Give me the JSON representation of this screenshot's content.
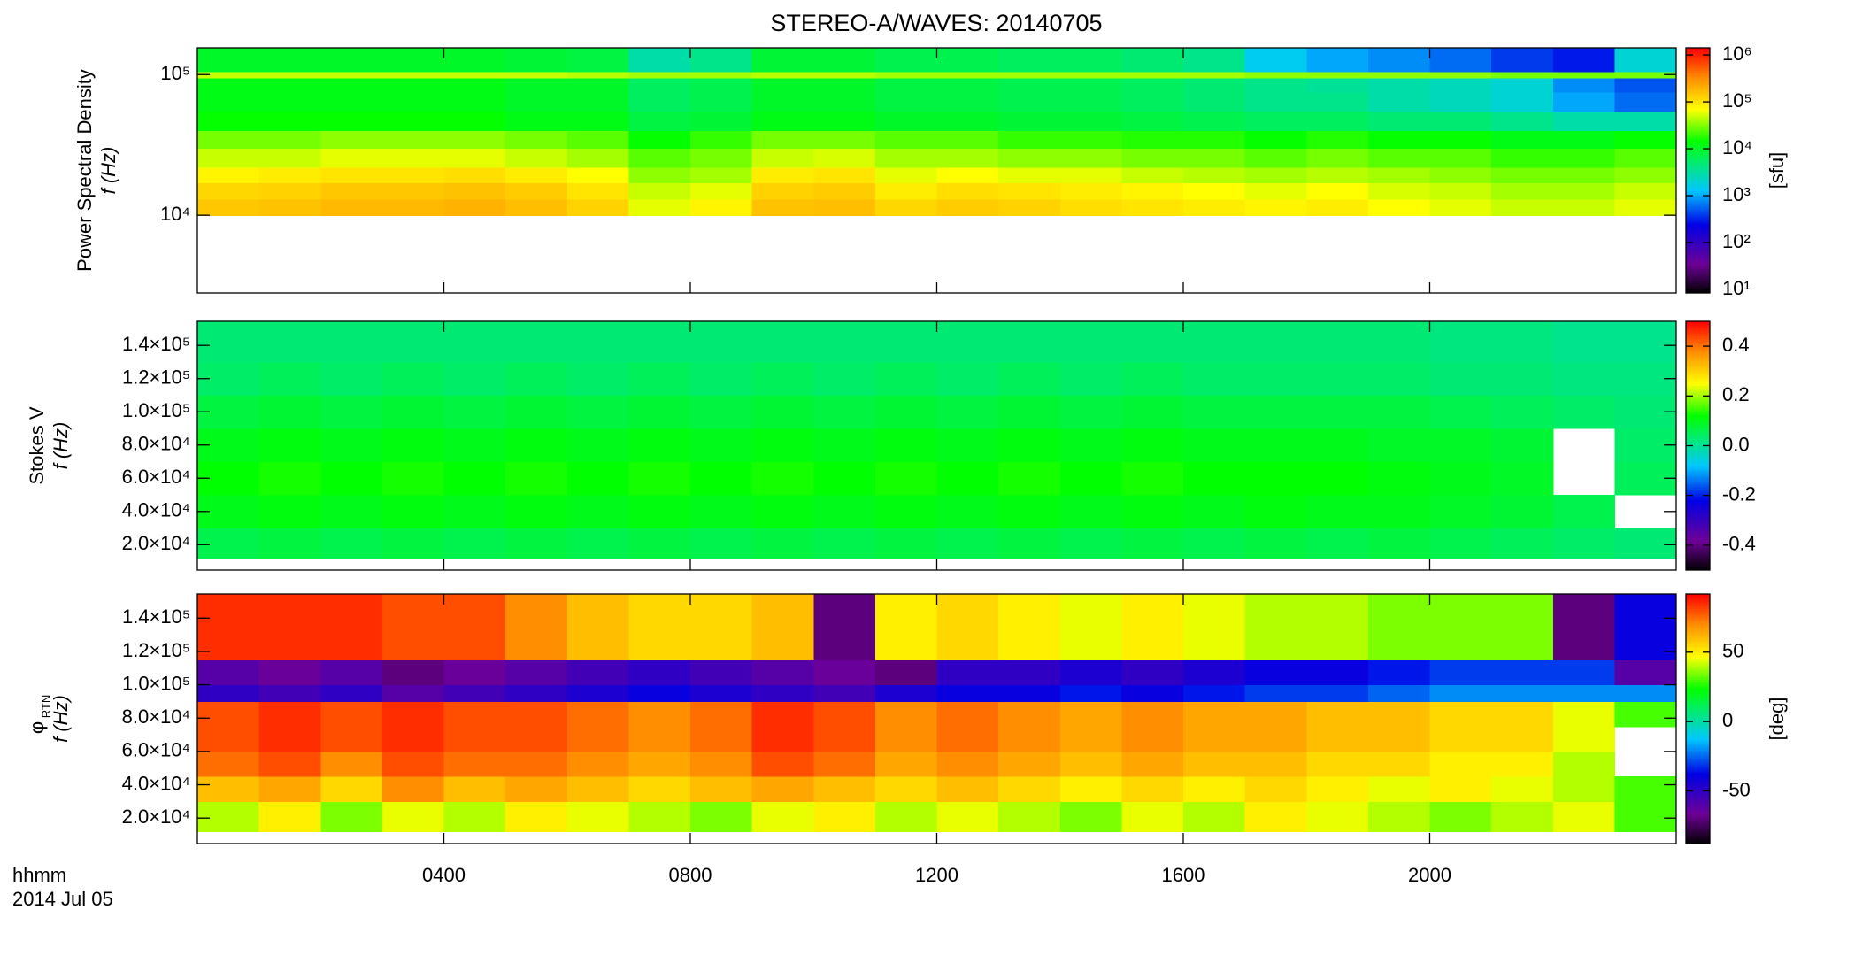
{
  "chart_data": [
    {
      "type": "heatmap",
      "title": "STEREO-A/WAVES: 20140705",
      "ylabel": "Power Spectral Density",
      "ylabel2": "f (Hz)",
      "zlabel": "[sfu]",
      "log_y": true,
      "log_z": true,
      "colormap": "rainbow",
      "xlim": [
        0,
        24
      ],
      "xticks": [
        4,
        8,
        12,
        16,
        20
      ],
      "ylim": [
        2800,
        155000
      ],
      "yticks": [
        {
          "value": 10000,
          "label": "10⁴"
        },
        {
          "value": 100000,
          "label": "10⁵"
        }
      ],
      "zlim": [
        8.4,
        1420000
      ],
      "zticks": [
        {
          "value": 10,
          "label": "10¹"
        },
        {
          "value": 100,
          "label": "10²"
        },
        {
          "value": 1000,
          "label": "10³"
        },
        {
          "value": 10000,
          "label": "10⁴"
        },
        {
          "value": 100000,
          "label": "10⁵"
        },
        {
          "value": 1000000,
          "label": "10⁶"
        }
      ],
      "xbins": [
        0,
        1,
        2,
        3,
        4,
        5,
        6,
        7,
        8,
        9,
        10,
        11,
        12,
        13,
        14,
        15,
        16,
        17,
        18,
        19,
        20,
        21,
        22,
        23,
        24
      ],
      "ybins": [
        10000,
        13000,
        17000,
        22000,
        30000,
        40000,
        55000,
        75000,
        95000,
        105000,
        155000
      ],
      "z": [
        [
          150000,
          160000,
          180000,
          180000,
          200000,
          170000,
          130000,
          60000,
          80000,
          160000,
          170000,
          120000,
          140000,
          130000,
          110000,
          100000,
          90000,
          80000,
          90000,
          70000,
          60000,
          50000,
          50000,
          60000
        ],
        [
          120000,
          130000,
          150000,
          150000,
          160000,
          140000,
          100000,
          50000,
          60000,
          130000,
          140000,
          90000,
          110000,
          100000,
          90000,
          80000,
          70000,
          60000,
          70000,
          55000,
          50000,
          40000,
          40000,
          50000
        ],
        [
          80000,
          90000,
          100000,
          100000,
          110000,
          90000,
          70000,
          35000,
          40000,
          90000,
          100000,
          60000,
          70000,
          60000,
          60000,
          50000,
          45000,
          40000,
          45000,
          40000,
          35000,
          30000,
          30000,
          35000
        ],
        [
          50000,
          50000,
          60000,
          60000,
          60000,
          50000,
          40000,
          25000,
          30000,
          50000,
          55000,
          40000,
          40000,
          35000,
          35000,
          30000,
          30000,
          25000,
          30000,
          25000,
          25000,
          20000,
          20000,
          25000
        ],
        [
          30000,
          30000,
          35000,
          35000,
          35000,
          30000,
          25000,
          15000,
          20000,
          30000,
          30000,
          25000,
          25000,
          20000,
          20000,
          18000,
          18000,
          15000,
          18000,
          15000,
          15000,
          12000,
          12000,
          15000
        ],
        [
          15000,
          15000,
          15000,
          15000,
          15000,
          12000,
          12000,
          8000,
          9000,
          12000,
          12000,
          10000,
          10000,
          9000,
          9000,
          8000,
          7000,
          6000,
          6000,
          5000,
          5000,
          4000,
          3000,
          3000
        ],
        [
          12000,
          12000,
          12000,
          12000,
          12000,
          10000,
          10000,
          6000,
          7000,
          10000,
          10000,
          8000,
          8000,
          7000,
          7000,
          6000,
          5000,
          4000,
          4000,
          3000,
          2500,
          2000,
          1000,
          600
        ],
        [
          12000,
          12000,
          12000,
          12000,
          12000,
          10000,
          10000,
          6000,
          7000,
          10000,
          10000,
          8000,
          8000,
          7000,
          7000,
          6000,
          5000,
          4000,
          3500,
          3000,
          2500,
          2000,
          800,
          500
        ],
        [
          50000,
          50000,
          50000,
          50000,
          50000,
          50000,
          45000,
          40000,
          40000,
          45000,
          45000,
          40000,
          40000,
          40000,
          40000,
          40000,
          40000,
          35000,
          35000,
          35000,
          35000,
          30000,
          30000,
          30000
        ],
        [
          10000,
          10000,
          10000,
          10000,
          10000,
          9000,
          8000,
          3000,
          4000,
          9000,
          9000,
          7000,
          7000,
          6000,
          6000,
          5000,
          4000,
          1500,
          1000,
          800,
          600,
          400,
          300,
          2000
        ]
      ]
    },
    {
      "type": "heatmap",
      "ylabel": "Stokes V",
      "ylabel2": "f (Hz)",
      "colormap": "rainbow",
      "xlim": [
        0,
        24
      ],
      "xticks": [
        4,
        8,
        12,
        16,
        20
      ],
      "ylim": [
        4700,
        154500
      ],
      "yticks": [
        {
          "value": 20000,
          "label": "2.0×10⁴"
        },
        {
          "value": 40000,
          "label": "4.0×10⁴"
        },
        {
          "value": 60000,
          "label": "6.0×10⁴"
        },
        {
          "value": 80000,
          "label": "8.0×10⁴"
        },
        {
          "value": 100000,
          "label": "1.0×10⁵"
        },
        {
          "value": 120000,
          "label": "1.2×10⁵"
        },
        {
          "value": 140000,
          "label": "1.4×10⁵"
        }
      ],
      "zlim": [
        -0.5,
        0.5
      ],
      "zticks": [
        -0.4,
        -0.2,
        {
          "value": 0,
          "label": "0.0"
        },
        0.2,
        0.4
      ],
      "xbins": [
        0,
        1,
        2,
        3,
        4,
        5,
        6,
        7,
        8,
        9,
        10,
        11,
        12,
        13,
        14,
        15,
        16,
        17,
        18,
        19,
        20,
        21,
        22,
        23,
        24
      ],
      "ybins": [
        12000,
        30000,
        50000,
        70000,
        90000,
        110000,
        130000,
        154500
      ],
      "z": [
        [
          0.06,
          0.07,
          0.06,
          0.07,
          0.06,
          0.07,
          0.06,
          0.07,
          0.06,
          0.07,
          0.06,
          0.07,
          0.06,
          0.07,
          0.06,
          0.07,
          0.06,
          0.07,
          0.06,
          0.07,
          0.06,
          0.05,
          0.04,
          0.03
        ],
        [
          0.1,
          0.11,
          0.1,
          0.11,
          0.1,
          0.11,
          0.1,
          0.11,
          0.1,
          0.11,
          0.1,
          0.11,
          0.1,
          0.11,
          0.1,
          0.11,
          0.1,
          0.11,
          0.1,
          0.1,
          0.09,
          0.08,
          0.06,
          null
        ],
        [
          0.12,
          0.13,
          0.12,
          0.13,
          0.12,
          0.13,
          0.12,
          0.13,
          0.12,
          0.13,
          0.12,
          0.13,
          0.12,
          0.13,
          0.12,
          0.13,
          0.12,
          0.12,
          0.12,
          0.11,
          0.1,
          0.09,
          null,
          0.05
        ],
        [
          0.1,
          0.11,
          0.1,
          0.11,
          0.1,
          0.11,
          0.1,
          0.11,
          0.1,
          0.11,
          0.1,
          0.11,
          0.1,
          0.11,
          0.1,
          0.11,
          0.1,
          0.1,
          0.1,
          0.09,
          0.09,
          0.08,
          null,
          0.04
        ],
        [
          0.07,
          0.08,
          0.07,
          0.08,
          0.07,
          0.08,
          0.07,
          0.08,
          0.07,
          0.08,
          0.07,
          0.08,
          0.07,
          0.08,
          0.07,
          0.08,
          0.07,
          0.07,
          0.07,
          0.07,
          0.06,
          0.05,
          0.04,
          0.03
        ],
        [
          0.04,
          0.05,
          0.04,
          0.05,
          0.04,
          0.05,
          0.04,
          0.05,
          0.04,
          0.05,
          0.04,
          0.05,
          0.04,
          0.05,
          0.04,
          0.05,
          0.04,
          0.04,
          0.04,
          0.04,
          0.03,
          0.03,
          0.02,
          0.02
        ],
        [
          0.03,
          0.03,
          0.03,
          0.03,
          0.03,
          0.03,
          0.03,
          0.03,
          0.03,
          0.03,
          0.03,
          0.03,
          0.03,
          0.03,
          0.03,
          0.03,
          0.03,
          0.03,
          0.03,
          0.03,
          0.02,
          0.02,
          0.01,
          0.01
        ]
      ]
    },
    {
      "type": "heatmap",
      "ylabel": "φ",
      "ylabel_sub": "RTN",
      "ylabel2": "f (Hz)",
      "zlabel": "[deg]",
      "colormap": "rainbow",
      "xlabel": "hhmm",
      "date": "2014 Jul 05",
      "xlim": [
        0,
        24
      ],
      "xticks": [
        {
          "value": 4,
          "label": "0400"
        },
        {
          "value": 8,
          "label": "0800"
        },
        {
          "value": 12,
          "label": "1200"
        },
        {
          "value": 16,
          "label": "1600"
        },
        {
          "value": 20,
          "label": "2000"
        }
      ],
      "ylim": [
        4700,
        154500
      ],
      "yticks": [
        {
          "value": 20000,
          "label": "2.0×10⁴"
        },
        {
          "value": 40000,
          "label": "4.0×10⁴"
        },
        {
          "value": 60000,
          "label": "6.0×10⁴"
        },
        {
          "value": 80000,
          "label": "8.0×10⁴"
        },
        {
          "value": 100000,
          "label": "1.0×10⁵"
        },
        {
          "value": 120000,
          "label": "1.2×10⁵"
        },
        {
          "value": 140000,
          "label": "1.4×10⁵"
        }
      ],
      "zlim": [
        -88,
        92
      ],
      "zticks": [
        -50,
        0,
        50
      ],
      "xbins": [
        0,
        1,
        2,
        3,
        4,
        5,
        6,
        7,
        8,
        9,
        10,
        11,
        12,
        13,
        14,
        15,
        16,
        17,
        18,
        19,
        20,
        21,
        22,
        23,
        24
      ],
      "ybins": [
        12000,
        30000,
        45000,
        60000,
        75000,
        90000,
        100000,
        115000,
        154500
      ],
      "z": [
        [
          40,
          50,
          35,
          45,
          40,
          50,
          45,
          40,
          35,
          45,
          50,
          40,
          45,
          40,
          35,
          45,
          40,
          50,
          45,
          40,
          35,
          40,
          45,
          30
        ],
        [
          60,
          65,
          55,
          70,
          60,
          65,
          60,
          55,
          60,
          65,
          60,
          55,
          60,
          55,
          50,
          55,
          50,
          55,
          50,
          45,
          50,
          45,
          40,
          30
        ],
        [
          75,
          80,
          70,
          80,
          75,
          75,
          70,
          65,
          70,
          80,
          75,
          65,
          70,
          65,
          60,
          65,
          60,
          60,
          55,
          55,
          50,
          50,
          40,
          null
        ],
        [
          80,
          85,
          80,
          85,
          80,
          80,
          75,
          70,
          75,
          85,
          80,
          70,
          75,
          70,
          65,
          70,
          65,
          65,
          60,
          60,
          55,
          55,
          45,
          null
        ],
        [
          80,
          85,
          80,
          85,
          80,
          80,
          75,
          70,
          75,
          85,
          80,
          70,
          75,
          70,
          65,
          70,
          65,
          65,
          60,
          60,
          55,
          55,
          45,
          30
        ],
        [
          -50,
          -55,
          -50,
          -60,
          -55,
          -50,
          -45,
          -40,
          -45,
          -50,
          -55,
          -45,
          -40,
          -40,
          -35,
          -40,
          -35,
          -30,
          -30,
          -25,
          -20,
          -20,
          -20,
          -20
        ],
        [
          -60,
          -65,
          -60,
          -70,
          -65,
          -60,
          -55,
          -50,
          -55,
          -60,
          -65,
          -70,
          -50,
          -50,
          -45,
          -50,
          -45,
          -40,
          -40,
          -35,
          -30,
          -30,
          -30,
          -60
        ],
        [
          85,
          85,
          85,
          80,
          80,
          70,
          60,
          55,
          55,
          60,
          -70,
          50,
          55,
          50,
          45,
          50,
          45,
          40,
          40,
          35,
          35,
          35,
          -70,
          -40
        ]
      ]
    }
  ]
}
